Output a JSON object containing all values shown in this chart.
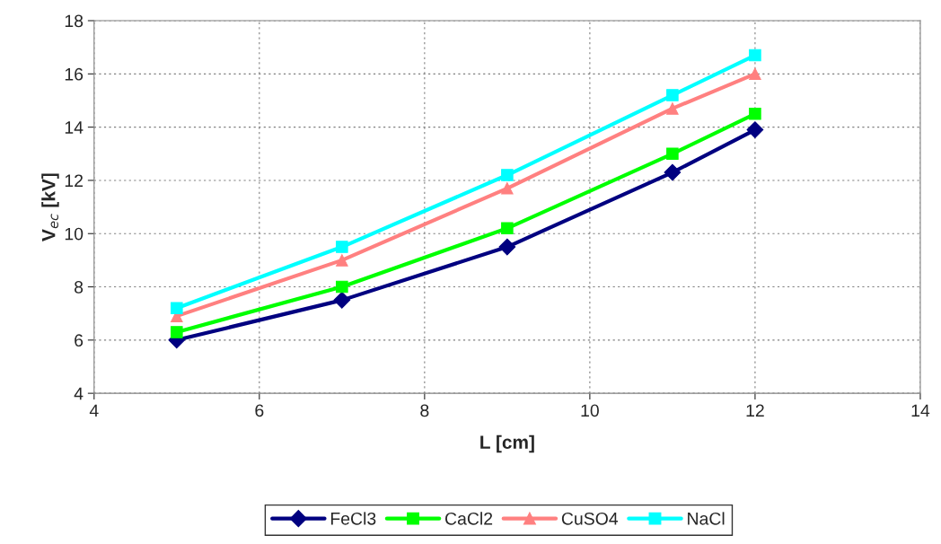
{
  "chart_data": {
    "type": "line",
    "xlabel": "L [cm]",
    "ylabel": "V$_{ec}$ [kV]",
    "x": [
      5,
      7,
      9,
      11,
      12
    ],
    "xlim": [
      4,
      14
    ],
    "xticks": [
      4,
      6,
      8,
      10,
      12,
      14
    ],
    "ylim": [
      4,
      18
    ],
    "yticks": [
      4,
      6,
      8,
      10,
      12,
      14,
      16,
      18
    ],
    "grid": true,
    "legend": "bottom",
    "line_style": "solid",
    "series": [
      {
        "name": "FeCl3",
        "color": "#000080",
        "marker": "diamond",
        "values": [
          6.0,
          7.5,
          9.5,
          12.3,
          13.9
        ]
      },
      {
        "name": "CaCl2",
        "color": "#00ff00",
        "marker": "square",
        "values": [
          6.3,
          8.0,
          10.2,
          13.0,
          14.5
        ]
      },
      {
        "name": "CuSO4",
        "color": "#ff8080",
        "marker": "triangle",
        "values": [
          6.9,
          9.0,
          11.7,
          14.7,
          16.0
        ]
      },
      {
        "name": "NaCl",
        "color": "#00ffff",
        "marker": "square",
        "values": [
          7.2,
          9.5,
          12.2,
          15.2,
          16.7
        ]
      }
    ]
  }
}
